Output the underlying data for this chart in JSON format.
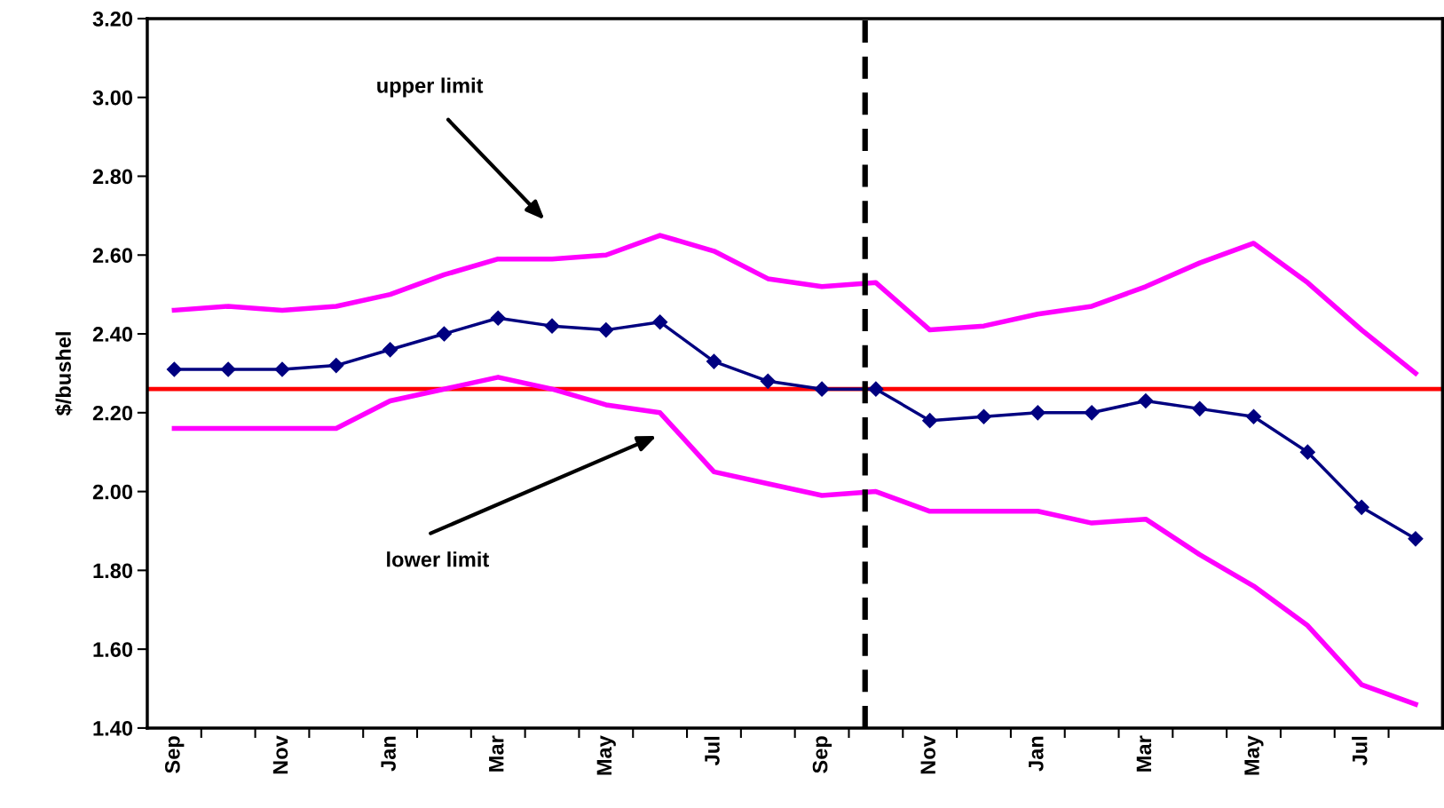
{
  "chart_data": {
    "type": "line",
    "ylabel": "$/bushel",
    "categories": [
      "Sep",
      null,
      "Nov",
      null,
      "Jan",
      null,
      "Mar",
      null,
      "May",
      null,
      "Jul",
      null,
      "Sep",
      null,
      "Nov",
      null,
      "Jan",
      null,
      "Mar",
      null,
      "May",
      null,
      "Jul",
      null
    ],
    "series": [
      {
        "color": "#ff00ff",
        "marker": "none",
        "values": [
          2.46,
          2.47,
          2.46,
          2.47,
          2.5,
          2.55,
          2.59,
          2.59,
          2.6,
          2.65,
          2.61,
          2.54,
          2.52,
          2.53,
          2.41,
          2.42,
          2.45,
          2.47,
          2.52,
          2.58,
          2.63,
          2.53,
          2.41,
          2.3
        ]
      },
      {
        "color": "#ff00ff",
        "marker": "none",
        "values": [
          2.16,
          2.16,
          2.16,
          2.16,
          2.23,
          2.26,
          2.29,
          2.26,
          2.22,
          2.2,
          2.05,
          2.02,
          1.99,
          2.0,
          1.95,
          1.95,
          1.95,
          1.92,
          1.93,
          1.84,
          1.76,
          1.66,
          1.51,
          1.46
        ]
      },
      {
        "color": "#000080",
        "marker": "diamond",
        "values": [
          2.31,
          2.31,
          2.31,
          2.32,
          2.36,
          2.4,
          2.44,
          2.42,
          2.41,
          2.43,
          2.33,
          2.28,
          2.26,
          2.26,
          2.18,
          2.19,
          2.2,
          2.2,
          2.23,
          2.21,
          2.19,
          2.1,
          1.96,
          1.88
        ]
      }
    ],
    "ylim": [
      1.4,
      3.2
    ],
    "yticks": [
      {
        "value": 1.4,
        "label": "1.40"
      },
      {
        "value": 1.6,
        "label": "1.60"
      },
      {
        "value": 1.8,
        "label": "1.80"
      },
      {
        "value": 2.0,
        "label": "2.00"
      },
      {
        "value": 2.2,
        "label": "2.20"
      },
      {
        "value": 2.4,
        "label": "2.40"
      },
      {
        "value": 2.6,
        "label": "2.60"
      },
      {
        "value": 2.8,
        "label": "2.80"
      },
      {
        "value": 3.0,
        "label": "3.00"
      },
      {
        "value": 3.2,
        "label": "3.20"
      }
    ],
    "ref_lines": [
      {
        "axis": "y",
        "value": 2.26,
        "color": "#ff0000",
        "line_style": "solid"
      }
    ],
    "annotations": [
      "upper limit",
      "lower limit"
    ],
    "grid": false,
    "legend": false
  }
}
